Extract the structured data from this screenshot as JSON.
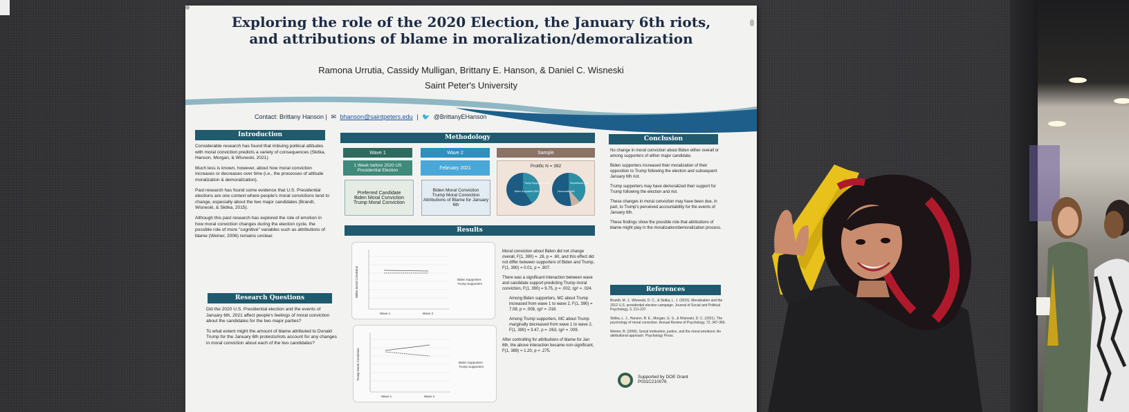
{
  "poster": {
    "title_line1": "Exploring the role of the 2020 Election, the January 6th riots,",
    "title_line2": "and attributions of blame in moralization/demoralization",
    "authors": "Ramona Urrutia, Cassidy Mulligan, Brittany E. Hanson, & Daniel C. Wisneski",
    "university": "Saint Peter's University",
    "contact_label": "Contact: Brittany Hanson |",
    "contact_email": "bhanson@saintpeters.edu",
    "contact_sep": "|",
    "contact_twitter": "@BrittanyEHanson"
  },
  "introduction": {
    "heading": "Introduction",
    "bullets": [
      "Considerable research has found that imbuing political attitudes with moral conviction predicts a variety of consequences (Skitka, Hanson, Morgan, & Wisneski, 2021).",
      "Much less is known, however, about how moral conviction increases or decreases over time (i.e., the processes of attitude moralization & demoralization).",
      "Past research has found some evidence that U.S. Presidential elections are one context where people's moral convictions tend to change, especially about the two major candidates (Brandt, Wisneski, & Skitka, 2015).",
      "Although this past research has explored the role of emotion in how moral conviction changes during the election cycle, the possible role of more \"cognitive\" variables such as attributions of blame (Weiner, 2006) remains unclear."
    ]
  },
  "research_questions": {
    "heading": "Research Questions",
    "bullets": [
      "Did the 2020 U.S. Presidential election and the events of January 6th, 2021 affect people's feelings of moral conviction about the candidates for the two major parties?",
      "To what extent might the amount of blame attributed to Donald Trump for the January 6th protests/riots account for any changes in moral conviction about each of the two candidates?"
    ]
  },
  "methodology": {
    "heading": "Methodology",
    "wave1_label": "Wave 1",
    "wave1_time": "1 Week before 2020 US Presidential Election",
    "wave1_measures": [
      "Preferred Candidate",
      "Biden Moral Conviction",
      "Trump Moral Conviction"
    ],
    "wave2_label": "Wave 2",
    "wave2_time": "February 2021",
    "wave2_measures": [
      "Biden Moral Conviction",
      "Trump Moral Conviction",
      "Attributions of Blame for January 6th"
    ],
    "sample_label": "Sample",
    "sample_n": "Prolific N = 392",
    "pie1_labels": [
      "Biden Supporters 59%",
      "Trump Supporters 41%"
    ],
    "pie2_labels": [
      "Democrats 48%",
      "Republicans 40%"
    ]
  },
  "results": {
    "heading": "Results",
    "chart1_ylabel": "Biden Moral Conviction",
    "chart2_ylabel": "Trump Moral Conviction",
    "chart_x_labels": [
      "Wave 1",
      "Wave 2"
    ],
    "legend": [
      "Biden Supporters",
      "Trump Supporters"
    ],
    "bullets": [
      "Moral conviction about Biden did not change overall, F(1, 390) = .28, p = .60, and this effect did not differ between supporters of Biden and Trump, F(1, 390) = 0.01, p = .907.",
      "There was a significant interaction between wave and candidate support predicting Trump moral conviction, F(1, 390) = 9.75, p = .002, ηp² = .024.",
      "Among Biden supporters, MC about Trump increased from wave 1 to wave 2, F(1, 390) = 7.08, p = .008, ηp² = .018.",
      "Among Trump supporters, MC about Trump marginally decreased from wave 1 to wave 2, F(1, 390) = 3.47, p = .063, ηp² = .009.",
      "After controlling for attributions of blame for Jan 6th, the above interaction became non-significant, F(1, 389) = 1.20, p = .275."
    ]
  },
  "conclusion": {
    "heading": "Conclusion",
    "bullets": [
      "No change in moral conviction about Biden either overall or among supporters of either major candidate.",
      "Biden supporters increased their moralization of their opposition to Trump following the election and subsequent January 6th riot.",
      "Trump supporters may have demoralized their support for Trump following the election and riot.",
      "These changes in moral conviction may have been due, in part, to Trump's perceived accountability for the events of January 6th.",
      "These findings show the possible role that attributions of blame might play in the moralization/demoralization process."
    ]
  },
  "references": {
    "heading": "References",
    "items": [
      "Brandt, M. J., Wisneski, D. C., & Skitka, L. J. (2015). Moralization and the 2012 U.S. presidential election campaign. Journal of Social and Political Psychology, 3, 211-237.",
      "Skitka, L. J., Hanson, B. E., Morgan, G. S., & Wisneski, D. C. (2021). The psychology of moral conviction. Annual Review of Psychology, 72, 347-366.",
      "Weiner, B. (2006). Social motivation, justice, and the moral emotions: An attributional approach. Psychology Press."
    ]
  },
  "grant": {
    "line1": "Supported by DOE Grant",
    "line2": "P031C210076"
  },
  "colors": {
    "header_teal": "#1f5a6e",
    "wave2_blue": "#2f8fc0",
    "wave1_green": "#2e6b5e",
    "sample_brown": "#8a7265",
    "pie_blue": "#1c5b82",
    "pie_teal": "#2d8fa6",
    "hair_red": "#b0192c"
  }
}
